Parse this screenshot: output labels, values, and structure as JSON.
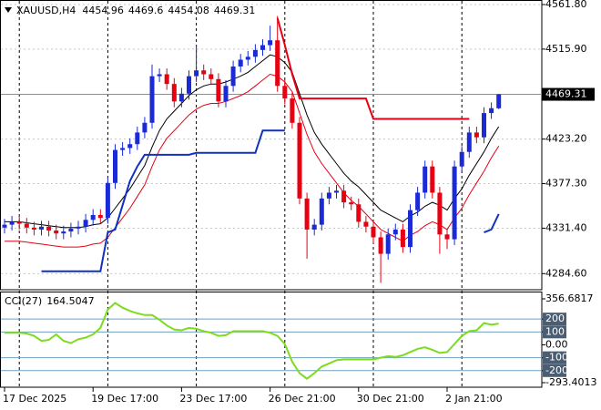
{
  "chart_data": {
    "type": "candlestick",
    "symbol": "XAUUSD,H4",
    "categories": [
      "17 Dec 2025",
      null,
      null,
      null,
      null,
      null,
      null,
      null,
      null,
      null,
      null,
      null,
      "19 Dec 17:00",
      null,
      null,
      null,
      null,
      null,
      null,
      null,
      null,
      null,
      null,
      null,
      "23 Dec 17:00",
      null,
      null,
      null,
      null,
      null,
      null,
      null,
      null,
      null,
      null,
      null,
      "26 Dec 21:00",
      null,
      null,
      null,
      null,
      null,
      null,
      null,
      null,
      null,
      null,
      null,
      "30 Dec 21:00",
      null,
      null,
      null,
      null,
      null,
      null,
      null,
      null,
      null,
      null,
      null,
      "2 Jan 21:00",
      null,
      null,
      null,
      null,
      null,
      null,
      null
    ],
    "open": [
      4332,
      4335,
      4338,
      4336,
      4332,
      4330,
      4333,
      4329,
      4326,
      4328,
      4331,
      4333,
      4340,
      4345,
      4342,
      4378,
      4412,
      4414,
      4418,
      4430,
      4440,
      4488,
      4490,
      4480,
      4462,
      4470,
      4488,
      4494,
      4490,
      4485,
      4462,
      4478,
      4498,
      4505,
      4508,
      4515,
      4520,
      4525,
      4478,
      4465,
      4440,
      4362,
      4330,
      4335,
      4362,
      4368,
      4370,
      4358,
      4356,
      4338,
      4333,
      4322,
      4305,
      4325,
      4330,
      4312,
      4350,
      4368,
      4395,
      4368,
      4325,
      4320,
      4395,
      4410,
      4430,
      4425,
      4450,
      4454.96
    ],
    "high": [
      4341,
      4344,
      4344,
      4342,
      4338,
      4339,
      4339,
      4335,
      4334,
      4337,
      4339,
      4346,
      4351,
      4351,
      4384,
      4418,
      4420,
      4424,
      4436,
      4446,
      4500,
      4496,
      4496,
      4486,
      4476,
      4494,
      4520,
      4500,
      4496,
      4491,
      4484,
      4504,
      4511,
      4514,
      4521,
      4526,
      4540,
      4550,
      4484,
      4471,
      4446,
      4368,
      4341,
      4368,
      4374,
      4376,
      4376,
      4364,
      4362,
      4344,
      4339,
      4328,
      4331,
      4336,
      4336,
      4356,
      4374,
      4401,
      4401,
      4374,
      4331,
      4401,
      4416,
      4436,
      4436,
      4456,
      4461,
      4469.6
    ],
    "low": [
      4326,
      4329,
      4330,
      4326,
      4324,
      4324,
      4323,
      4320,
      4320,
      4322,
      4325,
      4327,
      4334,
      4336,
      4336,
      4372,
      4406,
      4408,
      4412,
      4424,
      4434,
      4482,
      4474,
      4456,
      4456,
      4464,
      4482,
      4484,
      4479,
      4456,
      4456,
      4472,
      4492,
      4499,
      4502,
      4509,
      4514,
      4472,
      4459,
      4434,
      4356,
      4300,
      4324,
      4329,
      4356,
      4362,
      4352,
      4350,
      4332,
      4327,
      4316,
      4275,
      4299,
      4319,
      4306,
      4306,
      4344,
      4362,
      4362,
      4305,
      4310,
      4314,
      4389,
      4404,
      4419,
      4419,
      4444,
      4454.08
    ],
    "close": [
      4335,
      4338,
      4336,
      4332,
      4330,
      4333,
      4329,
      4326,
      4328,
      4331,
      4333,
      4340,
      4345,
      4342,
      4378,
      4412,
      4414,
      4418,
      4430,
      4440,
      4488,
      4490,
      4480,
      4462,
      4470,
      4488,
      4494,
      4490,
      4485,
      4462,
      4478,
      4498,
      4505,
      4508,
      4515,
      4520,
      4525,
      4478,
      4465,
      4440,
      4362,
      4330,
      4335,
      4362,
      4368,
      4370,
      4358,
      4356,
      4338,
      4333,
      4322,
      4305,
      4325,
      4330,
      4312,
      4350,
      4368,
      4395,
      4368,
      4325,
      4320,
      4395,
      4410,
      4430,
      4425,
      4450,
      4455,
      4469.31
    ],
    "up_color": "#1a2bd6",
    "down_color": "#e60012",
    "ylim": [
      4268,
      4566.5
    ],
    "yticks": [
      {
        "value": 4561.8,
        "label": "4561.80"
      },
      {
        "value": 4515.9,
        "label": "4515.90"
      },
      {
        "value": 4423.2,
        "label": "4423.20"
      },
      {
        "value": 4377.3,
        "label": "4377.30"
      },
      {
        "value": 4331.4,
        "label": "4331.40"
      },
      {
        "value": 4284.6,
        "label": "4284.60"
      }
    ],
    "last_price": 4469.31,
    "grid": true,
    "overlays": [
      {
        "color": "#000000",
        "width": 1,
        "values": [
          4338,
          4338,
          4338,
          4337,
          4336,
          4335,
          4334,
          4333,
          4332,
          4332,
          4332,
          4333,
          4335,
          4336,
          4342,
          4352,
          4362,
          4372,
          4384,
          4396,
          4415,
          4432,
          4444,
          4452,
          4460,
          4468,
          4474,
          4478,
          4480,
          4480,
          4482,
          4485,
          4488,
          4492,
          4498,
          4504,
          4510,
          4508,
          4502,
          4492,
          4470,
          4448,
          4430,
          4418,
          4408,
          4398,
          4388,
          4380,
          4374,
          4366,
          4358,
          4350,
          4346,
          4342,
          4338,
          4344,
          4348,
          4354,
          4358,
          4355,
          4350,
          4362,
          4372,
          4386,
          4398,
          4410,
          4424,
          4436
        ]
      },
      {
        "color": "#e60012",
        "width": 1,
        "values": [
          4318,
          4318,
          4318,
          4317,
          4316,
          4315,
          4314,
          4313,
          4312,
          4312,
          4312,
          4313,
          4315,
          4316,
          4322,
          4332,
          4342,
          4352,
          4364,
          4376,
          4395,
          4412,
          4424,
          4432,
          4440,
          4448,
          4454,
          4458,
          4460,
          4460,
          4462,
          4465,
          4468,
          4472,
          4478,
          4484,
          4490,
          4488,
          4482,
          4472,
          4450,
          4428,
          4410,
          4398,
          4388,
          4378,
          4368,
          4360,
          4354,
          4346,
          4338,
          4330,
          4326,
          4322,
          4318,
          4324,
          4328,
          4334,
          4338,
          4335,
          4330,
          4342,
          4352,
          4366,
          4378,
          4390,
          4404,
          4416
        ]
      },
      {
        "color": "#e60012",
        "width": 2,
        "values": [
          null,
          null,
          null,
          null,
          null,
          null,
          null,
          null,
          null,
          null,
          null,
          null,
          null,
          null,
          null,
          null,
          null,
          null,
          null,
          null,
          null,
          null,
          null,
          null,
          null,
          null,
          null,
          null,
          null,
          null,
          null,
          null,
          null,
          null,
          null,
          null,
          null,
          4548,
          4520,
          4490,
          4465,
          4465,
          4465,
          4465,
          4465,
          4465,
          4465,
          4465,
          4465,
          4465,
          4444,
          4444,
          4444,
          4444,
          4444,
          4444,
          4444,
          4444,
          4444,
          4444,
          4444,
          4444,
          4444,
          4444,
          null,
          null,
          null,
          null
        ]
      },
      {
        "color": "#1030c0",
        "width": 2,
        "values": [
          null,
          null,
          null,
          null,
          null,
          4287,
          4287,
          4287,
          4287,
          4287,
          4287,
          4287,
          4287,
          4287,
          4327,
          4330,
          4355,
          4380,
          4395,
          4407,
          4407,
          4407,
          4407,
          4407,
          4407,
          4407,
          4409,
          4409,
          4409,
          4409,
          4409,
          4409,
          4409,
          4409,
          4409,
          4432,
          4432,
          4432,
          4432,
          null,
          null,
          null,
          null,
          null,
          null,
          null,
          null,
          null,
          null,
          null,
          null,
          null,
          null,
          null,
          null,
          null,
          null,
          null,
          null,
          null,
          null,
          null,
          null,
          null,
          null,
          4327,
          4330,
          4346
        ]
      }
    ],
    "indicator": {
      "type": "line",
      "label": "CCI(27)",
      "color": "#7ddc1f",
      "values": [
        94,
        94,
        94,
        88,
        69,
        31,
        38,
        81,
        31,
        13,
        44,
        56,
        81,
        131,
        275,
        325,
        288,
        263,
        244,
        231,
        231,
        194,
        150,
        119,
        113,
        131,
        125,
        106,
        94,
        69,
        75,
        106,
        106,
        106,
        106,
        106,
        94,
        69,
        6,
        -131,
        -219,
        -263,
        -219,
        -169,
        -144,
        -119,
        -113,
        -113,
        -113,
        -113,
        -113,
        -100,
        -88,
        -94,
        -81,
        -56,
        -31,
        -19,
        -38,
        -63,
        -56,
        6,
        69,
        106,
        113,
        169,
        156,
        164.5047
      ],
      "ylim": [
        -293.4013,
        356.6817
      ],
      "yticks": [
        356.6817,
        200,
        100,
        {
          "value": 0,
          "label": "0.00"
        },
        -100,
        -200,
        -293.4013
      ],
      "levels": [
        200,
        100,
        -100,
        -200
      ]
    }
  }
}
